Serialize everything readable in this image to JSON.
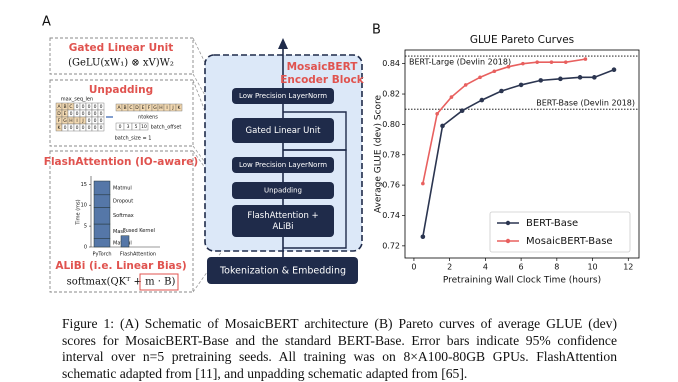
{
  "panel_a": {
    "label": "A",
    "gated_linear_unit": {
      "title": "Gated Linear Unit",
      "formula": "(GeLU(xW₁) ⊗ xV)W₂"
    },
    "unpadding": {
      "title": "Unpadding",
      "max_seq_len": "max_seq_len",
      "padded_rows": [
        [
          "A",
          "B",
          "C",
          "0",
          "0",
          "0",
          "0",
          "0"
        ],
        [
          "D",
          "E",
          "0",
          "0",
          "0",
          "0",
          "0",
          "0"
        ],
        [
          "F",
          "G",
          "H",
          "I",
          "J",
          "0",
          "0",
          "0"
        ],
        [
          "K",
          "0",
          "0",
          "0",
          "0",
          "0",
          "0",
          "0"
        ]
      ],
      "tokens": [
        "A",
        "B",
        "C",
        "D",
        "E",
        "F",
        "G",
        "H",
        "I",
        "J",
        "K"
      ],
      "ntokens": "ntokens",
      "batch_offset_values": [
        0,
        3,
        5,
        10
      ],
      "batch_offset": "batch_offset",
      "batch_size": "batch_size = 1"
    },
    "flash_attention": {
      "title": "FlashAttention (IO-aware)",
      "y_label": "Time (ms)",
      "ylim": [
        0,
        17
      ],
      "yticks": [
        0,
        5,
        10,
        15
      ],
      "bars": [
        {
          "label": "PyTorch",
          "segments": [
            {
              "name": "Matmul",
              "value": 2
            },
            {
              "name": "Mask",
              "value": 3.5
            },
            {
              "name": "Softmax",
              "value": 4
            },
            {
              "name": "Dropout",
              "value": 3
            },
            {
              "name": "Matmul",
              "value": 3.3
            }
          ]
        },
        {
          "label": "FlashAttention",
          "segments": [
            {
              "name": "Fused Kernel",
              "value": 2.7
            }
          ]
        }
      ]
    },
    "alibi": {
      "title": "ALiBi (i.e. Linear Bias)",
      "formula": "softmax(QKᵀ + m · B)"
    },
    "encoder_block": {
      "title": [
        "MosaicBERT",
        "Encoder Block"
      ],
      "layers": [
        [
          "Low Precision LayerNorm"
        ],
        [
          "Gated Linear Unit"
        ],
        [
          "Low Precision LayerNorm"
        ],
        [
          "Unpadding"
        ],
        [
          "FlashAttention +",
          "ALiBi"
        ]
      ],
      "embedding": "Tokenization & Embedding"
    }
  },
  "chart_data": {
    "type": "line",
    "label": "B",
    "title": "GLUE Pareto Curves",
    "x_label": "Pretraining Wall Clock Time (hours)",
    "y_label": "Average GLUE (dev) Score",
    "xlim": [
      -0.5,
      12.6
    ],
    "ylim": [
      0.712,
      0.849
    ],
    "xticks": [
      0,
      2,
      4,
      6,
      8,
      10,
      12
    ],
    "yticks": [
      0.72,
      0.74,
      0.76,
      0.78,
      {
        "value": 0.8,
        "label": "0.80"
      },
      0.82,
      0.84
    ],
    "series": [
      {
        "name": "BERT-Base",
        "color": "#2b3550",
        "x": [
          0.5,
          1.6,
          2.7,
          3.8,
          4.9,
          6.0,
          7.1,
          8.2,
          9.3,
          10.1,
          11.2
        ],
        "values": [
          0.726,
          0.799,
          0.809,
          0.816,
          0.822,
          0.826,
          0.829,
          0.83,
          0.831,
          0.831,
          0.836
        ]
      },
      {
        "name": "MosaicBERT-Base",
        "color": "#e8605f",
        "x": [
          0.5,
          1.3,
          2.1,
          2.9,
          3.7,
          4.5,
          5.3,
          6.1,
          6.9,
          7.7,
          8.5,
          9.6
        ],
        "values": [
          0.761,
          0.807,
          0.818,
          0.826,
          0.831,
          0.835,
          0.838,
          0.84,
          0.841,
          0.841,
          0.841,
          0.843
        ]
      }
    ],
    "reference_lines": [
      {
        "label": "BERT-Large (Devlin 2018)",
        "value": 0.845
      },
      {
        "label": "BERT-Base (Devlin 2018)",
        "value": 0.81
      }
    ],
    "legend": "lower right"
  },
  "caption": "Figure 1: (A) Schematic of MosaicBERT architecture (B) Pareto curves of average GLUE (dev) scores for MosaicBERT-Base and the standard BERT-Base. Error bars indicate 95% confidence interval over n=5 pretraining seeds. All training was on 8×A100-80GB GPUs. FlashAttention schematic adapted from [11], and unpadding schematic adapted from [65]."
}
